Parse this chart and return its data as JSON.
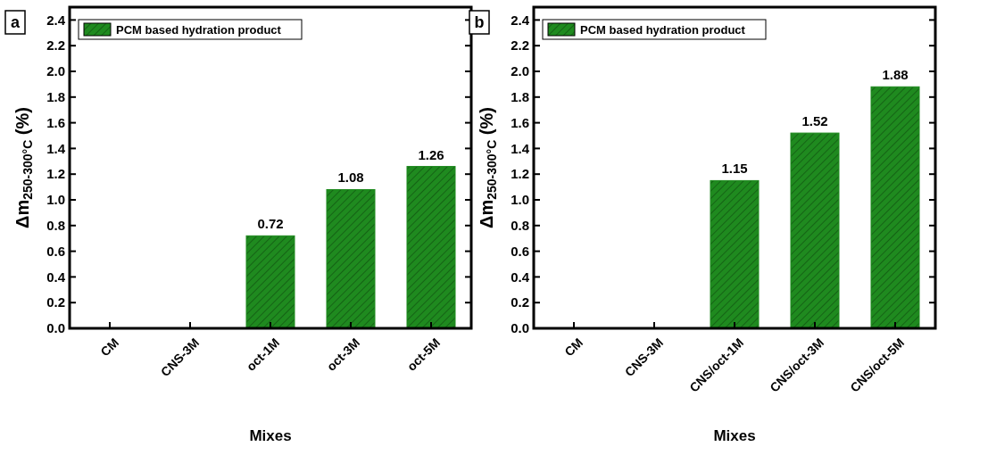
{
  "chart_data": [
    {
      "type": "bar",
      "annotations": [
        "a"
      ],
      "xlabel": "Mixes",
      "ylabel": "Δm$_{250-300°C}$ (%)",
      "categories": [
        "CM",
        "CNS-3M",
        "oct-1M",
        "oct-3M",
        "oct-5M"
      ],
      "series": [
        {
          "name": "PCM based hydration product",
          "color": "#1f8a1f",
          "values": [
            0,
            0,
            0.72,
            1.08,
            1.26
          ],
          "value_labels": [
            null,
            null,
            "0.72",
            "1.08",
            "1.26"
          ]
        }
      ],
      "ylim": [
        0,
        2.5
      ],
      "yticks": [
        {
          "value": 0,
          "label": "0.0"
        },
        {
          "value": 0.2,
          "label": "0.2"
        },
        {
          "value": 0.4,
          "label": "0.4"
        },
        {
          "value": 0.6,
          "label": "0.6"
        },
        {
          "value": 0.8,
          "label": "0.8"
        },
        {
          "value": 1,
          "label": "1.0"
        },
        {
          "value": 1.2,
          "label": "1.2"
        },
        {
          "value": 1.4,
          "label": "1.4"
        },
        {
          "value": 1.6,
          "label": "1.6"
        },
        {
          "value": 1.8,
          "label": "1.8"
        },
        {
          "value": 2,
          "label": "2.0"
        },
        {
          "value": 2.2,
          "label": "2.2"
        },
        {
          "value": 2.4,
          "label": "2.4"
        }
      ],
      "legend": "top left"
    },
    {
      "type": "bar",
      "annotations": [
        "b"
      ],
      "xlabel": "Mixes",
      "ylabel": "Δm$_{250-300°C}$ (%)",
      "categories": [
        "CM",
        "CNS-3M",
        "CNS/oct-1M",
        "CNS/oct-3M",
        "CNS/oct-5M"
      ],
      "series": [
        {
          "name": "PCM based hydration product",
          "color": "#1f8a1f",
          "values": [
            0,
            0,
            1.15,
            1.52,
            1.88
          ],
          "value_labels": [
            null,
            null,
            "1.15",
            "1.52",
            "1.88"
          ]
        }
      ],
      "ylim": [
        0,
        2.5
      ],
      "yticks": [
        {
          "value": 0,
          "label": "0.0"
        },
        {
          "value": 0.2,
          "label": "0.2"
        },
        {
          "value": 0.4,
          "label": "0.4"
        },
        {
          "value": 0.6,
          "label": "0.6"
        },
        {
          "value": 0.8,
          "label": "0.8"
        },
        {
          "value": 1,
          "label": "1.0"
        },
        {
          "value": 1.2,
          "label": "1.2"
        },
        {
          "value": 1.4,
          "label": "1.4"
        },
        {
          "value": 1.6,
          "label": "1.6"
        },
        {
          "value": 1.8,
          "label": "1.8"
        },
        {
          "value": 2,
          "label": "2.0"
        },
        {
          "value": 2.2,
          "label": "2.2"
        },
        {
          "value": 2.4,
          "label": "2.4"
        }
      ],
      "legend": "top left"
    }
  ]
}
